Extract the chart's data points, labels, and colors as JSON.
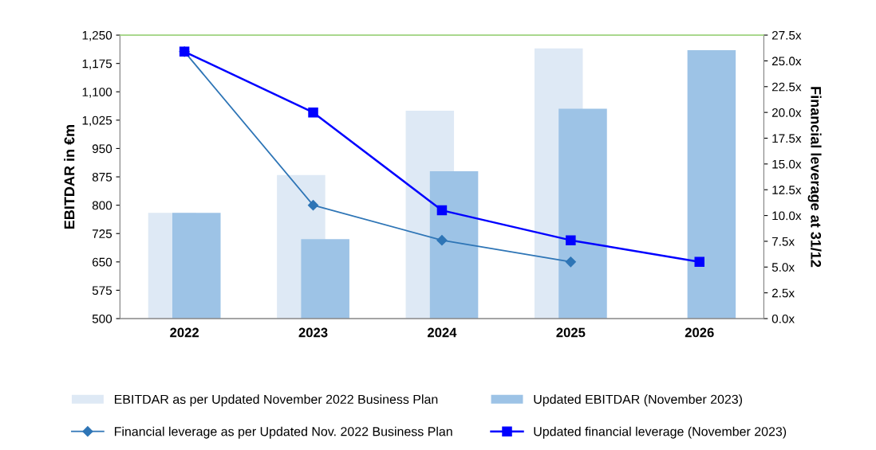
{
  "chart_data": {
    "type": "bar",
    "categories": [
      "2022",
      "2023",
      "2024",
      "2025",
      "2026"
    ],
    "ylabel": "EBITDAR in €m",
    "y2label": "Financial leverage at 31/12",
    "ylim": [
      500,
      1250
    ],
    "yticks": [
      500,
      {
        "value": 575,
        "label": "575"
      },
      650,
      725,
      800,
      875,
      950,
      {
        "value": 1025,
        "label": "1,025"
      },
      {
        "value": 1100,
        "label": "1,100"
      },
      {
        "value": 1175,
        "label": "1,175"
      },
      {
        "value": 1250,
        "label": "1,250"
      }
    ],
    "y2lim": [
      0,
      27.5
    ],
    "y2ticks": [
      {
        "value": 0,
        "label": "0.0x"
      },
      {
        "value": 2.5,
        "label": "2.5x"
      },
      {
        "value": 5,
        "label": "5.0x"
      },
      {
        "value": 7.5,
        "label": "7.5x"
      },
      {
        "value": 10,
        "label": "10.0x"
      },
      {
        "value": 12.5,
        "label": "12.5x"
      },
      {
        "value": 15,
        "label": "15.0x"
      },
      {
        "value": 17.5,
        "label": "17.5x"
      },
      {
        "value": 20,
        "label": "20.0x"
      },
      {
        "value": 22.5,
        "label": "22.5x"
      },
      {
        "value": 25,
        "label": "25.0x"
      },
      {
        "value": 27.5,
        "label": "27.5x"
      }
    ],
    "grid": false,
    "legend": "bottom",
    "series": [
      {
        "name": "EBITDAR as per Updated November 2022 Business Plan",
        "color": "#dee9f5",
        "values": [
          780,
          880,
          1050,
          1215,
          null
        ]
      },
      {
        "name": "Updated EBITDAR (November 2023)",
        "color": "#9dc3e6",
        "values": [
          780,
          710,
          890,
          1055,
          1210
        ]
      },
      {
        "name": "Financial leverage as per Updated Nov. 2022 Business Plan",
        "type": "line",
        "axis": "y2",
        "marker": "diamond",
        "color": "#2e75b6",
        "values": [
          25.9,
          11.0,
          7.6,
          5.5,
          null
        ]
      },
      {
        "name": "Updated financial leverage (November 2023)",
        "type": "line",
        "axis": "y2",
        "marker": "square",
        "color": "#0000ff",
        "values": [
          25.9,
          20.0,
          10.5,
          7.6,
          5.5
        ]
      }
    ]
  }
}
